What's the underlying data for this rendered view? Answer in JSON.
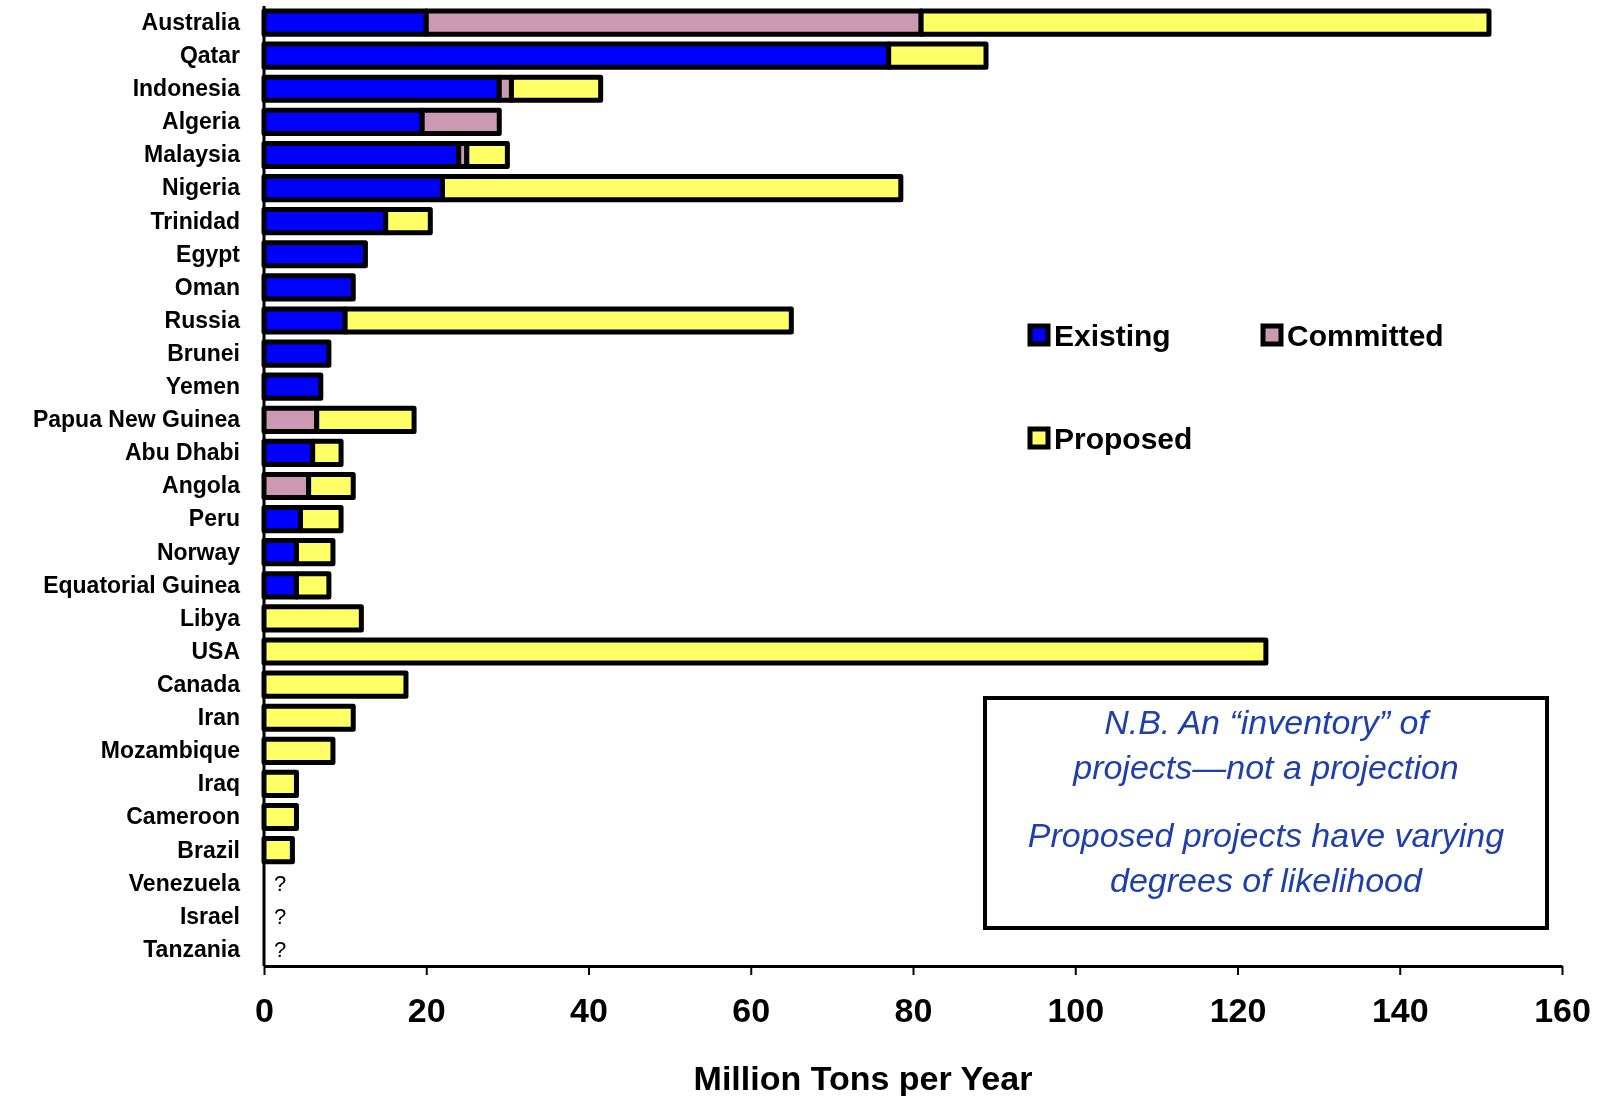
{
  "chart_data": {
    "type": "bar",
    "orientation": "horizontal",
    "stacked": true,
    "xlabel": "Million Tons per Year",
    "categories": [
      "Australia",
      "Qatar",
      "Indonesia",
      "Algeria",
      "Malaysia",
      "Nigeria",
      "Trinidad",
      "Egypt",
      "Oman",
      "Russia",
      "Brunei",
      "Yemen",
      "Papua New Guinea",
      "Abu Dhabi",
      "Angola",
      "Peru",
      "Norway",
      "Equatorial Guinea",
      "Libya",
      "USA",
      "Canada",
      "Iran",
      "Mozambique",
      "Iraq",
      "Cameroon",
      "Brazil",
      "Venezuela",
      "Israel",
      "Tanzania"
    ],
    "series": [
      {
        "name": "Existing",
        "color": "#0000ff",
        "values": [
          20,
          77,
          29,
          19.5,
          24,
          22,
          15,
          12.5,
          11,
          10,
          8,
          7,
          null,
          6,
          null,
          4.5,
          4,
          4,
          null,
          null,
          null,
          null,
          null,
          null,
          null,
          null,
          null,
          null,
          null
        ]
      },
      {
        "name": "Committed",
        "color": "#cc99b3",
        "values": [
          61,
          null,
          1.5,
          9.5,
          1,
          null,
          null,
          null,
          null,
          null,
          null,
          null,
          6.5,
          null,
          5.5,
          null,
          null,
          null,
          null,
          null,
          null,
          null,
          null,
          null,
          null,
          null,
          null,
          null,
          null
        ]
      },
      {
        "name": "Proposed",
        "color": "#ffff66",
        "values": [
          70,
          12,
          11,
          null,
          5,
          56.5,
          5.5,
          null,
          null,
          55,
          null,
          null,
          12,
          3.5,
          5.5,
          5,
          4.5,
          4,
          12,
          123.5,
          17.5,
          11,
          8.5,
          4,
          4,
          3.5,
          null,
          null,
          null
        ]
      }
    ],
    "xlim": [
      0,
      160
    ],
    "xticks": [
      0,
      20,
      40,
      60,
      80,
      100,
      120,
      140,
      160
    ],
    "legend": "top right",
    "grid": false,
    "annotations": [
      "N.B. An “inventory” of projects—not a projection",
      "Proposed projects have varying degrees of likelihood",
      "?",
      "?",
      "?"
    ]
  }
}
